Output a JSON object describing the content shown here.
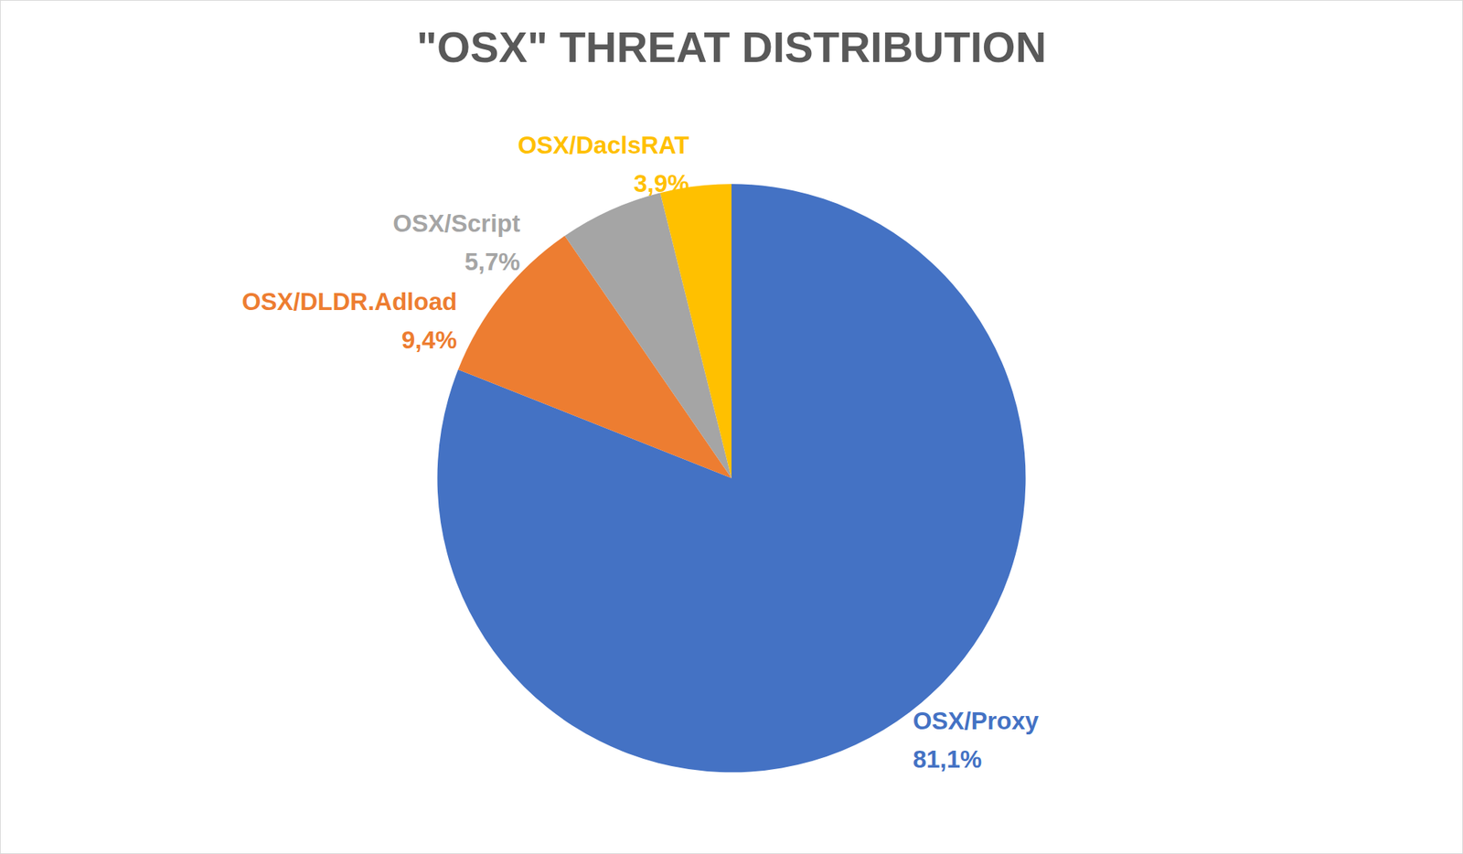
{
  "chart_data": {
    "type": "pie",
    "title": "\"OSX\" THREAT DISTRIBUTION",
    "categories": [
      "OSX/Proxy",
      "OSX/DLDR.Adload",
      "OSX/Script",
      "OSX/DaclsRAT"
    ],
    "values": [
      81.1,
      9.4,
      5.7,
      3.9
    ],
    "value_labels": [
      "81,1%",
      "9,4%",
      "5,7%",
      "3,9%"
    ],
    "colors": [
      "#4472c4",
      "#ed7d31",
      "#a5a5a5",
      "#ffc000"
    ],
    "data_labels": true
  }
}
